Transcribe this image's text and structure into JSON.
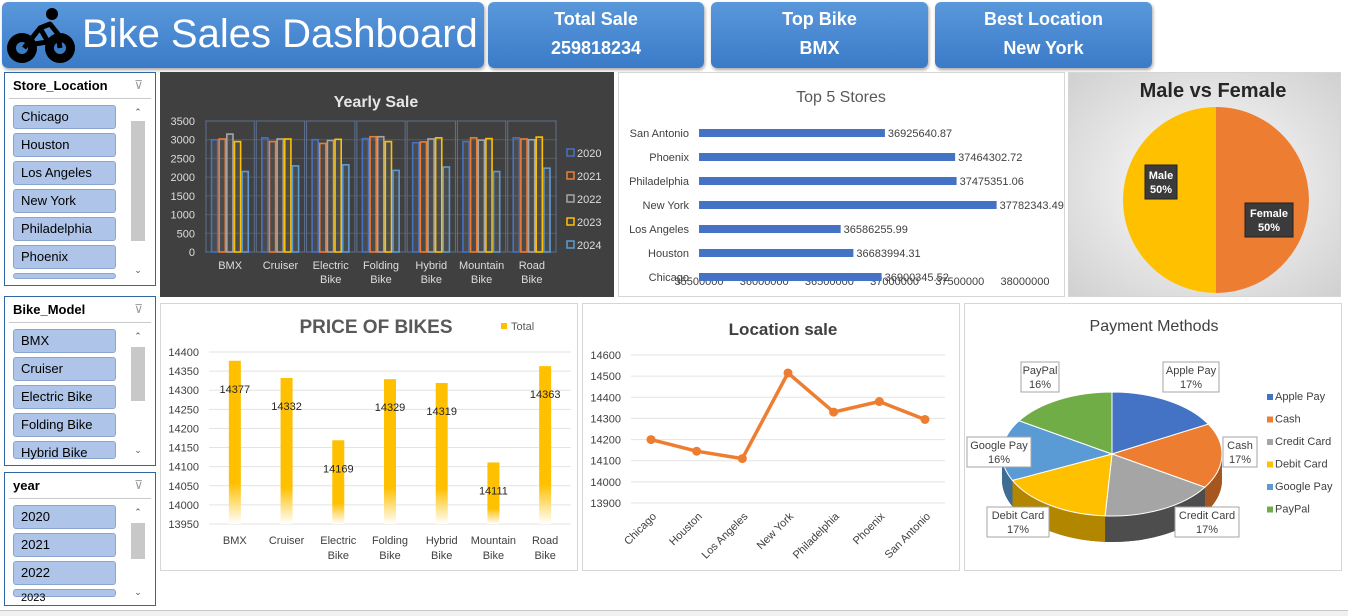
{
  "header": {
    "title": "Bike Sales Dashboard",
    "kpis": [
      {
        "label": "Total Sale",
        "value": "259818234"
      },
      {
        "label": "Top Bike",
        "value": "BMX"
      },
      {
        "label": "Best Location",
        "value": "New York"
      }
    ]
  },
  "slicers": [
    {
      "title": "Store_Location",
      "items": [
        "Chicago",
        "Houston",
        "Los Angeles",
        "New York",
        "Philadelphia",
        "Phoenix"
      ]
    },
    {
      "title": "Bike_Model",
      "items": [
        "BMX",
        "Cruiser",
        "Electric Bike",
        "Folding Bike",
        "Hybrid Bike"
      ]
    },
    {
      "title": "year",
      "items": [
        "2020",
        "2021",
        "2022",
        "2023"
      ]
    }
  ],
  "colors": {
    "header": "#3a7bc8",
    "slicer_item": "#aec5e9",
    "bar_blue": "#4472c4",
    "orange": "#ed7d31",
    "gold": "#ffc000",
    "dark_bg": "#404040"
  },
  "chart_data": [
    {
      "id": "yearly",
      "type": "bar",
      "title": "Yearly Sale",
      "categories": [
        "BMX",
        "Cruiser",
        "Electric Bike",
        "Folding Bike",
        "Hybrid Bike",
        "Mountain Bike",
        "Road Bike"
      ],
      "series": [
        {
          "name": "2020",
          "color": "#4472c4",
          "values": [
            3000,
            3050,
            3000,
            3030,
            2920,
            2950,
            3050
          ]
        },
        {
          "name": "2021",
          "color": "#ed7d31",
          "values": [
            3020,
            2950,
            2900,
            3080,
            2940,
            3050,
            3020
          ]
        },
        {
          "name": "2022",
          "color": "#a5a5a5",
          "values": [
            3150,
            3020,
            2980,
            3080,
            3020,
            2990,
            3000
          ]
        },
        {
          "name": "2023",
          "color": "#ffc000",
          "values": [
            2950,
            3020,
            3010,
            2950,
            3050,
            3030,
            3070
          ]
        },
        {
          "name": "2024",
          "color": "#5b9bd5",
          "values": [
            2150,
            2300,
            2330,
            2180,
            2270,
            2150,
            2240
          ]
        }
      ],
      "ylim": [
        0,
        3500
      ],
      "yticks": [
        "0",
        "500",
        "1000",
        "1500",
        "2000",
        "2500",
        "3000",
        "3500"
      ],
      "legend": "right"
    },
    {
      "id": "top5",
      "type": "bar",
      "orientation": "horizontal",
      "title": "Top 5 Stores",
      "categories": [
        "San Antonio",
        "Phoenix",
        "Philadelphia",
        "New York",
        "Los Angeles",
        "Houston",
        "Chicago"
      ],
      "values": [
        36925640.87,
        37464302.72,
        37475351.06,
        37782343.49,
        36586255.99,
        36683994.31,
        36900345.52
      ],
      "labels": [
        "36925640.87",
        "37464302.72",
        "37475351.06",
        "37782343.49",
        "36586255.99",
        "36683994.31",
        "36900345.52"
      ],
      "xlim": [
        35500000,
        38000000
      ],
      "xticks": [
        "35500000",
        "36000000",
        "36500000",
        "37000000",
        "37500000",
        "38000000"
      ]
    },
    {
      "id": "gender",
      "type": "pie",
      "title": "Male vs Female",
      "slices": [
        {
          "name": "Male",
          "value": 50,
          "label": "50%",
          "color": "#ffc000"
        },
        {
          "name": "Female",
          "value": 50,
          "label": "50%",
          "color": "#ed7d31"
        }
      ]
    },
    {
      "id": "price",
      "type": "bar",
      "title": "PRICE OF BIKES",
      "legend_label": "Total",
      "categories": [
        "BMX",
        "Cruiser",
        "Electric Bike",
        "Folding Bike",
        "Hybrid Bike",
        "Mountain Bike",
        "Road Bike"
      ],
      "values": [
        14377,
        14332,
        14169,
        14329,
        14319,
        14111,
        14363
      ],
      "ylim": [
        13950,
        14400
      ],
      "yticks": [
        "13950",
        "14000",
        "14050",
        "14100",
        "14150",
        "14200",
        "14250",
        "14300",
        "14350",
        "14400"
      ]
    },
    {
      "id": "location",
      "type": "line",
      "title": "Location sale",
      "categories": [
        "Chicago",
        "Houston",
        "Los Angeles",
        "New York",
        "Philadelphia",
        "Phoenix",
        "San Antonio"
      ],
      "values": [
        14200,
        14145,
        14110,
        14515,
        14330,
        14380,
        14295
      ],
      "ylim": [
        13900,
        14600
      ],
      "yticks": [
        "13900",
        "14000",
        "14100",
        "14200",
        "14300",
        "14400",
        "14500",
        "14600"
      ]
    },
    {
      "id": "payment",
      "type": "pie",
      "title": "Payment Methods",
      "slices": [
        {
          "name": "Apple Pay",
          "label": "Apple Pay",
          "pct": "17%",
          "value": 17,
          "color": "#4472c4"
        },
        {
          "name": "Cash",
          "label": "Cash",
          "pct": "17%",
          "value": 17,
          "color": "#ed7d31"
        },
        {
          "name": "Credit Card",
          "label": "Credit Card",
          "pct": "17%",
          "value": 17,
          "color": "#a5a5a5"
        },
        {
          "name": "Debit Card",
          "label": "Debit Card",
          "pct": "17%",
          "value": 17,
          "color": "#ffc000"
        },
        {
          "name": "Google Pay",
          "label": "Google Pay",
          "pct": "16%",
          "value": 16,
          "color": "#5b9bd5"
        },
        {
          "name": "PayPal",
          "label": "PayPal",
          "pct": "16%",
          "value": 16,
          "color": "#70ad47"
        }
      ],
      "legend": "right"
    }
  ]
}
